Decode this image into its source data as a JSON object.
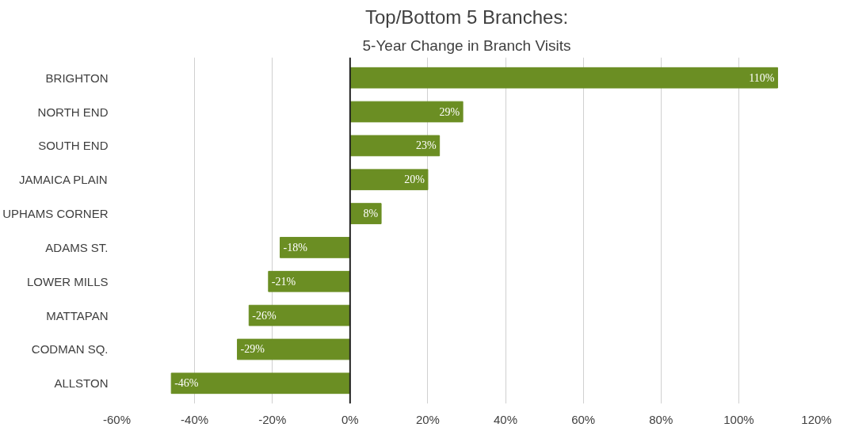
{
  "chart_data": {
    "type": "bar",
    "orientation": "horizontal",
    "title": "Top/Bottom 5 Branches:",
    "subtitle": "5-Year Change in Branch Visits",
    "categories": [
      "BRIGHTON",
      "NORTH END",
      "SOUTH END",
      "JAMAICA PLAIN",
      "UPHAMS CORNER",
      "ADAMS ST.",
      "LOWER MILLS",
      "MATTAPAN",
      "CODMAN SQ.",
      "ALLSTON"
    ],
    "values": [
      110,
      29,
      23,
      20,
      8,
      -18,
      -21,
      -26,
      -29,
      -46
    ],
    "value_labels": [
      "110%",
      "29%",
      "23%",
      "20%",
      "8%",
      "-18%",
      "-21%",
      "-26%",
      "-29%",
      "-46%"
    ],
    "color": "#6b8e23",
    "xlim": [
      -60,
      120
    ],
    "xticks": [
      {
        "value": -60,
        "label": "-60%"
      },
      {
        "value": -40,
        "label": "-40%"
      },
      {
        "value": -20,
        "label": "-20%"
      },
      {
        "value": 0,
        "label": "0%"
      },
      {
        "value": 20,
        "label": "20%"
      },
      {
        "value": 40,
        "label": "40%"
      },
      {
        "value": 60,
        "label": "60%"
      },
      {
        "value": 80,
        "label": "80%"
      },
      {
        "value": 100,
        "label": "100%"
      },
      {
        "value": 120,
        "label": "120%"
      }
    ],
    "grid": "x"
  }
}
